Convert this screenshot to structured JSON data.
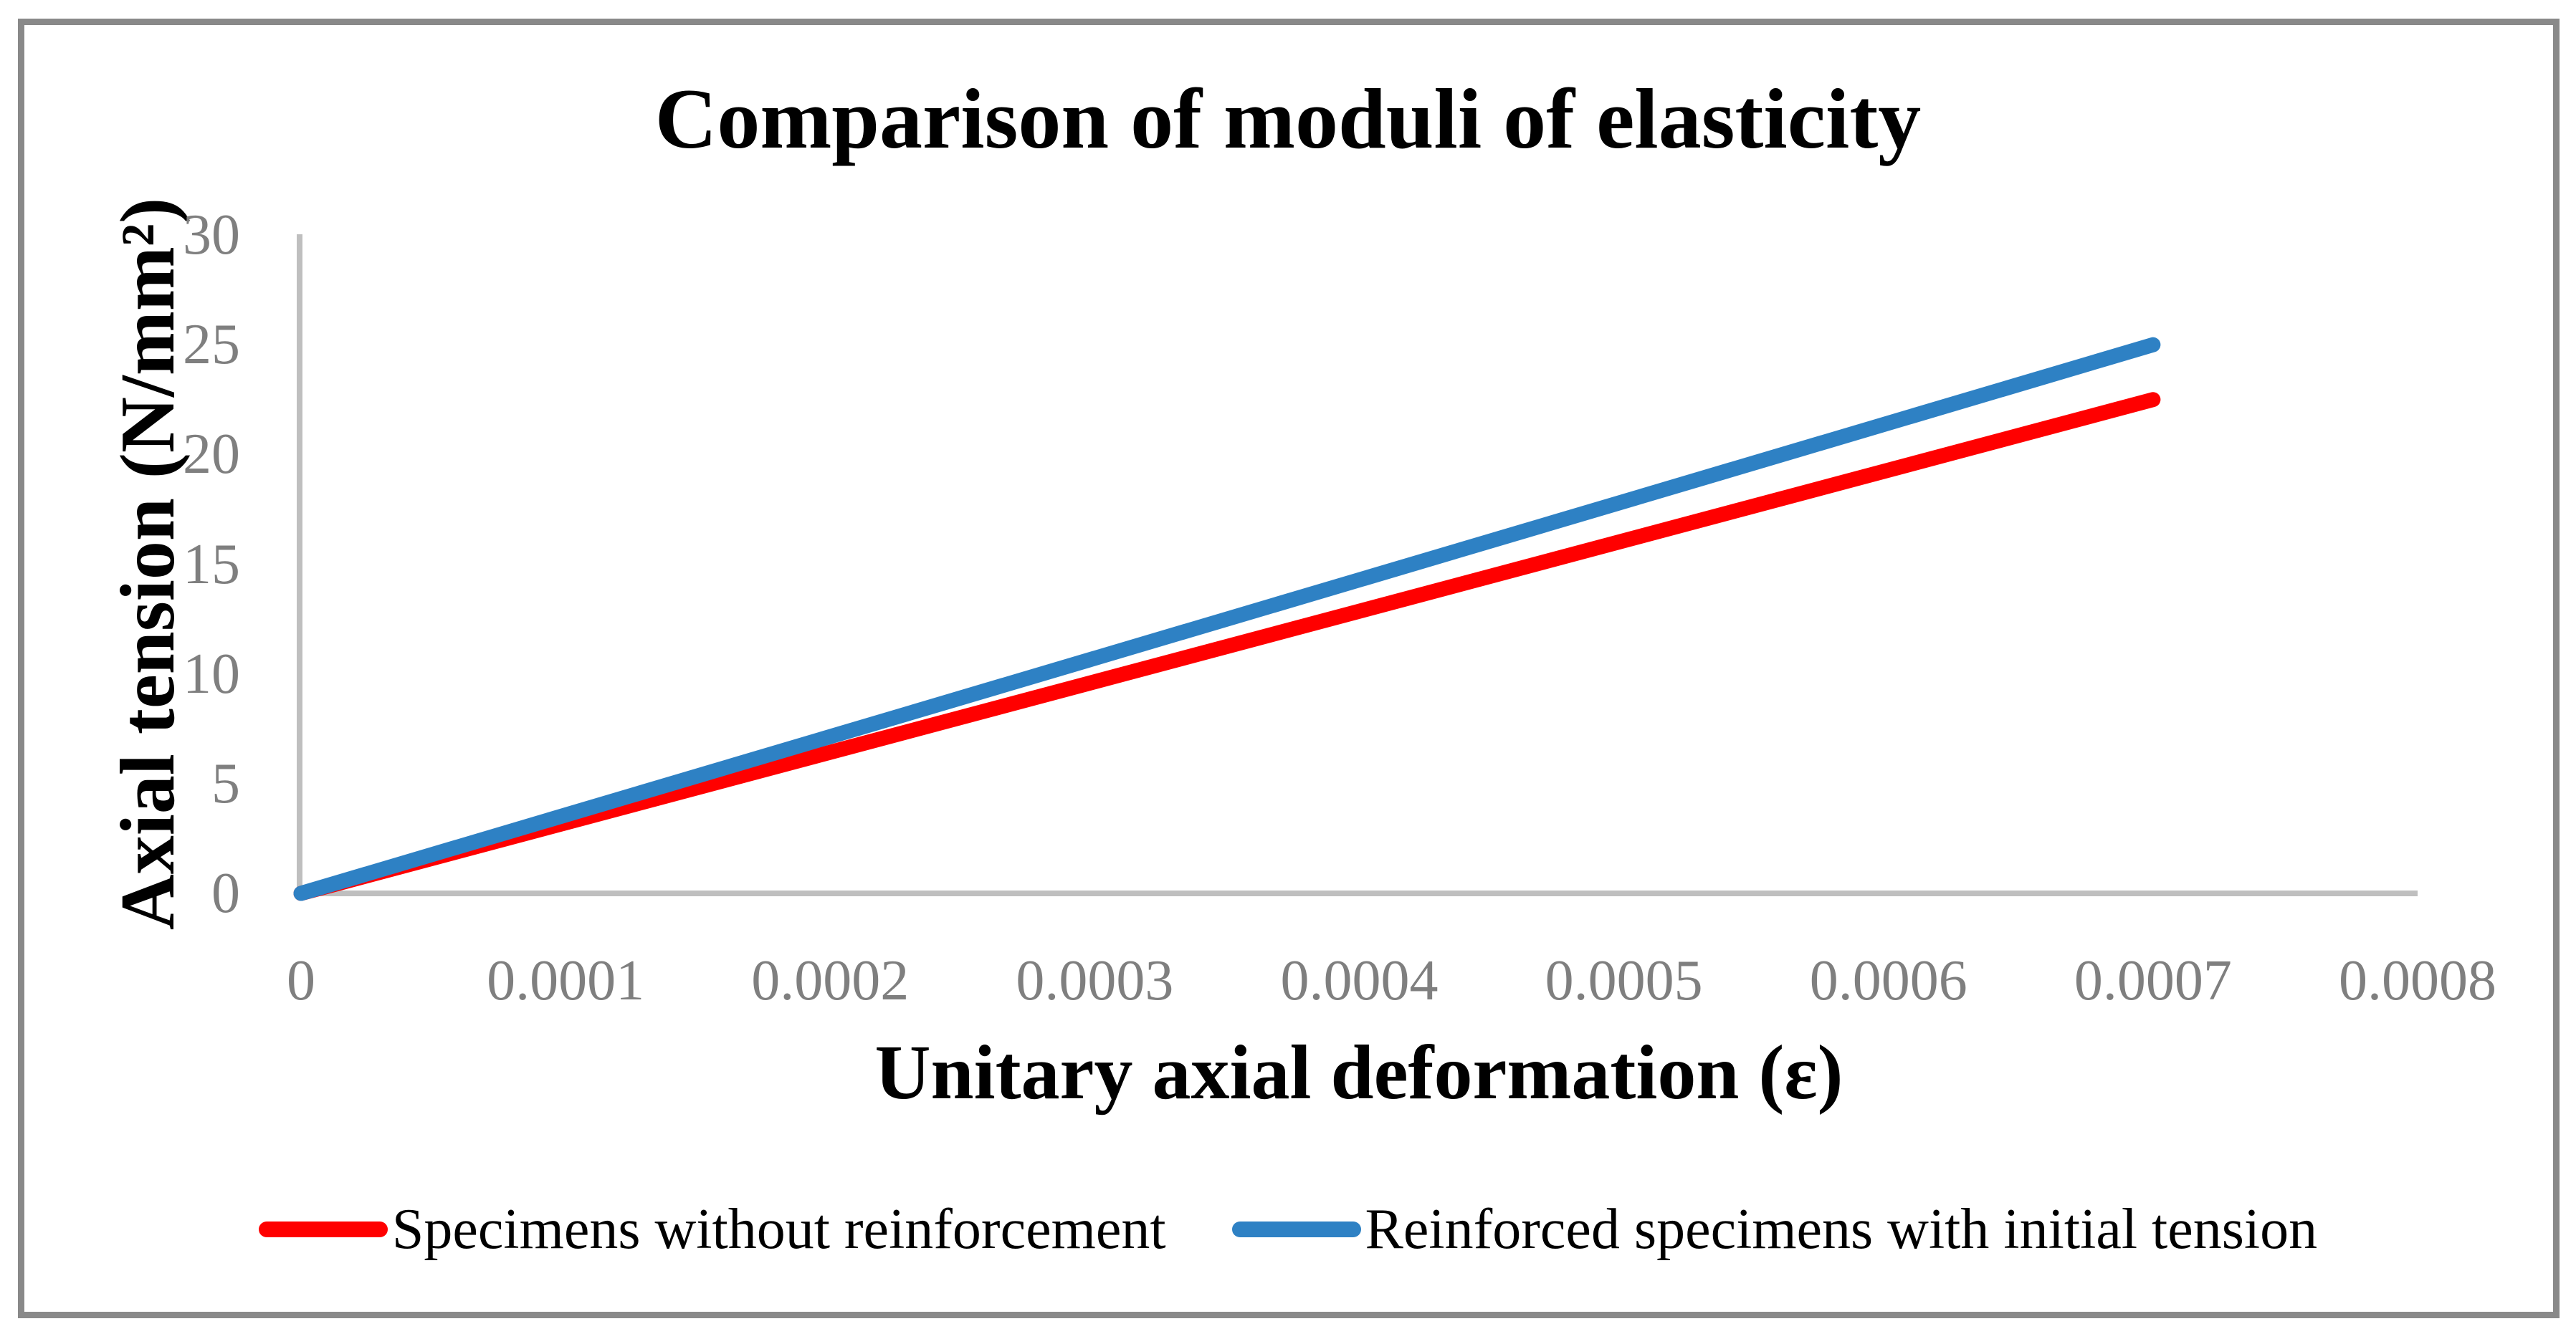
{
  "chart_data": {
    "type": "line",
    "title": "Comparison of moduli of elasticity",
    "xlabel": "Unitary axial deformation (ε)",
    "ylabel": "Axial tension (N/mm²)",
    "xlim": [
      0,
      0.0008
    ],
    "ylim": [
      0,
      30
    ],
    "x_tick_labels": [
      "0",
      "0.0001",
      "0.0002",
      "0.0003",
      "0.0004",
      "0.0005",
      "0.0006",
      "0.0007",
      "0.0008"
    ],
    "y_tick_labels": [
      "0",
      "5",
      "10",
      "15",
      "20",
      "25",
      "30"
    ],
    "grid": false,
    "legend_position": "bottom",
    "series": [
      {
        "name": "Specimens without reinforcement",
        "color": "#FF0000",
        "x": [
          0,
          0.0007
        ],
        "y": [
          0,
          22.5
        ]
      },
      {
        "name": "Reinforced specimens with initial tension",
        "color": "#2E81C4",
        "x": [
          0,
          0.0007
        ],
        "y": [
          0,
          25
        ]
      }
    ],
    "axis_line_color": "#BFBFBF",
    "tick_label_color": "#7F7F7F",
    "frame_border_color": "#898989",
    "title_color": "#000000"
  }
}
